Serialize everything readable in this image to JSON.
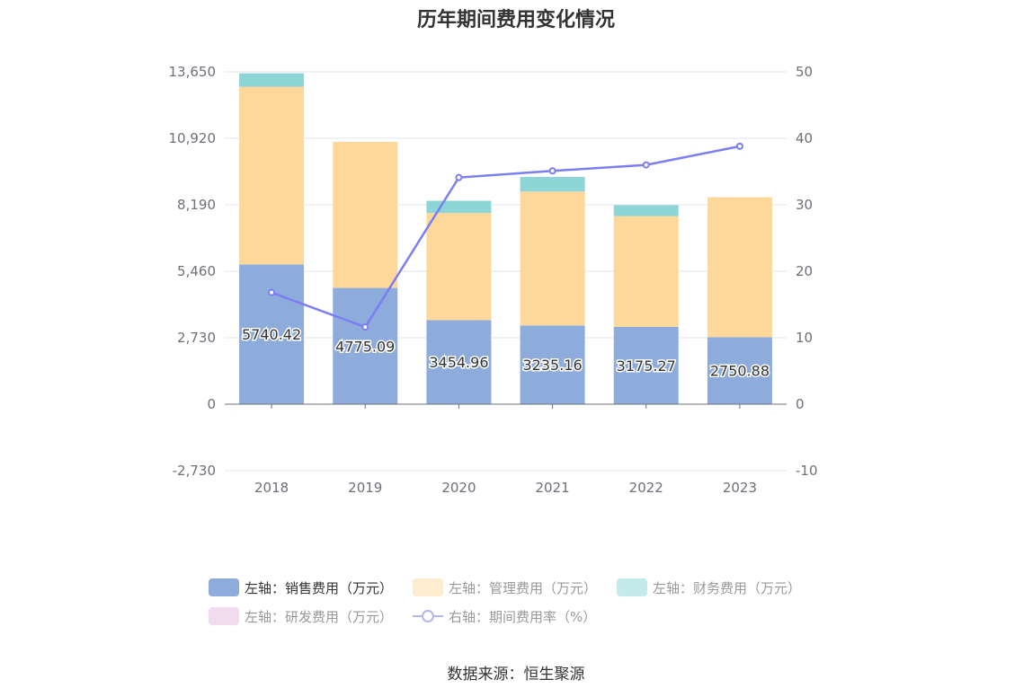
{
  "chart_data": {
    "type": "bar",
    "title": "历年期间费用变化情况",
    "categories": [
      "2018",
      "2019",
      "2020",
      "2021",
      "2022",
      "2023"
    ],
    "series": [
      {
        "name": "左轴：销售费用（万元）",
        "axis": "left",
        "color": "#8eacdb",
        "values": [
          5740.42,
          4775.09,
          3454.96,
          3235.16,
          3175.27,
          2750.88
        ]
      },
      {
        "name": "左轴：管理费用（万元）",
        "axis": "left",
        "color": "#fed89b",
        "values": [
          7300,
          6000,
          4400,
          5500,
          4550,
          5750
        ]
      },
      {
        "name": "左轴：财务费用（万元）",
        "axis": "left",
        "color": "#8dd5d7",
        "values": [
          550,
          0,
          500,
          600,
          450,
          0
        ]
      },
      {
        "name": "左轴：研发费用（万元）",
        "axis": "left",
        "color": "#f1dcef",
        "values": [
          0,
          0,
          0,
          0,
          0,
          0
        ]
      },
      {
        "name": "右轴：期间费用率（%）",
        "axis": "right",
        "type": "line",
        "color": "#7b7ef0",
        "values": [
          16.8,
          11.6,
          34.1,
          35.1,
          36.0,
          38.8
        ]
      }
    ],
    "data_labels": [
      "5740.42",
      "4775.09",
      "3454.96",
      "3235.16",
      "3175.27",
      "2750.88"
    ],
    "left_axis": {
      "ticks": [
        -2730,
        0,
        2730,
        5460,
        8190,
        10920,
        13650
      ],
      "tick_labels": [
        "-2,730",
        "0",
        "2,730",
        "5,460",
        "8,190",
        "10,920",
        "13,650"
      ],
      "range": [
        -2730,
        13650
      ]
    },
    "right_axis": {
      "ticks": [
        -10,
        0,
        10,
        20,
        30,
        40,
        50
      ],
      "tick_labels": [
        "-10",
        "0",
        "10",
        "20",
        "30",
        "40",
        "50"
      ],
      "range": [
        -10,
        50
      ]
    },
    "grid": true,
    "legend_position": "bottom"
  },
  "legend": {
    "items": [
      {
        "label": "左轴：销售费用（万元）",
        "color": "#8eacdb",
        "kind": "box",
        "active": true
      },
      {
        "label": "左轴：管理费用（万元）",
        "color": "#feeccf",
        "kind": "box",
        "active": false
      },
      {
        "label": "左轴：财务费用（万元）",
        "color": "#c4ebec",
        "kind": "box",
        "active": false
      },
      {
        "label": "左轴：研发费用（万元）",
        "color": "#f1dcef",
        "kind": "box",
        "active": false
      },
      {
        "label": "右轴：期间费用率（%）",
        "color": "#b3b4f3",
        "kind": "line",
        "active": false
      }
    ]
  },
  "source": "数据来源：恒生聚源"
}
